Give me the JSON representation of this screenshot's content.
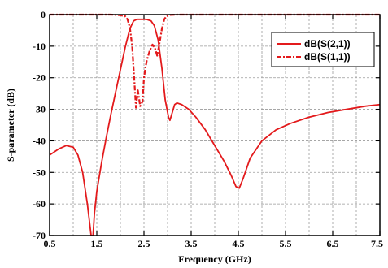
{
  "chart_data": {
    "type": "line",
    "title": "",
    "xlabel": "Frequency (GHz)",
    "ylabel": "S-parameter (dB)",
    "xlim": [
      0.5,
      7.5
    ],
    "ylim": [
      -70,
      0
    ],
    "xticks": [
      "0.5",
      "1.5",
      "2.5",
      "3.5",
      "4.5",
      "5.5",
      "6.5",
      "7.5"
    ],
    "yticks": [
      "0",
      "-10",
      "-20",
      "-30",
      "-40",
      "-50",
      "-60",
      "-70"
    ],
    "grid": true,
    "legend_position": "top-right",
    "series": [
      {
        "name": "dB(S(2,1))",
        "style": "solid",
        "color": "#e31a1c",
        "x": [
          0.5,
          0.7,
          0.85,
          1.0,
          1.1,
          1.2,
          1.3,
          1.38,
          1.42,
          1.45,
          1.5,
          1.6,
          1.7,
          1.8,
          1.9,
          2.0,
          2.1,
          2.2,
          2.28,
          2.35,
          2.45,
          2.55,
          2.65,
          2.72,
          2.8,
          2.88,
          2.95,
          3.02,
          3.05,
          3.1,
          3.15,
          3.2,
          3.3,
          3.45,
          3.6,
          3.8,
          4.0,
          4.2,
          4.35,
          4.45,
          4.52,
          4.6,
          4.75,
          5.0,
          5.3,
          5.6,
          6.0,
          6.4,
          6.8,
          7.2,
          7.5
        ],
        "y": [
          -44.5,
          -42.5,
          -41.5,
          -42.0,
          -44.5,
          -50.0,
          -60.0,
          -70.0,
          -70.0,
          -63.0,
          -56.0,
          -47.0,
          -39.0,
          -31.5,
          -24.5,
          -17.5,
          -10.5,
          -4.5,
          -2.0,
          -1.5,
          -1.5,
          -1.5,
          -2.0,
          -3.5,
          -8.0,
          -17.0,
          -27.0,
          -32.5,
          -33.5,
          -31.0,
          -28.5,
          -28.0,
          -28.5,
          -30.0,
          -32.5,
          -36.5,
          -41.5,
          -46.5,
          -51.0,
          -54.5,
          -55.0,
          -52.0,
          -45.5,
          -40.0,
          -36.5,
          -34.5,
          -32.5,
          -31.0,
          -30.0,
          -29.0,
          -28.5
        ]
      },
      {
        "name": "dB(S(1,1))",
        "style": "dash-dot",
        "color": "#e31a1c",
        "x": [
          0.5,
          1.0,
          1.5,
          1.8,
          2.0,
          2.1,
          2.15,
          2.2,
          2.25,
          2.3,
          2.33,
          2.37,
          2.42,
          2.47,
          2.5,
          2.53,
          2.56,
          2.62,
          2.68,
          2.73,
          2.78,
          2.83,
          2.88,
          2.93,
          2.98,
          3.05,
          3.2,
          4.0,
          5.0,
          6.0,
          7.0,
          7.5
        ],
        "y": [
          0,
          0,
          0,
          0,
          -0.2,
          -0.5,
          -1.5,
          -4.0,
          -10.0,
          -22.0,
          -29.5,
          -24.0,
          -29.0,
          -27.5,
          -20.0,
          -17.0,
          -14.5,
          -11.5,
          -9.5,
          -10.5,
          -13.0,
          -9.0,
          -4.5,
          -1.5,
          -0.5,
          -0.1,
          0,
          0,
          0,
          0,
          0,
          0
        ]
      }
    ]
  }
}
